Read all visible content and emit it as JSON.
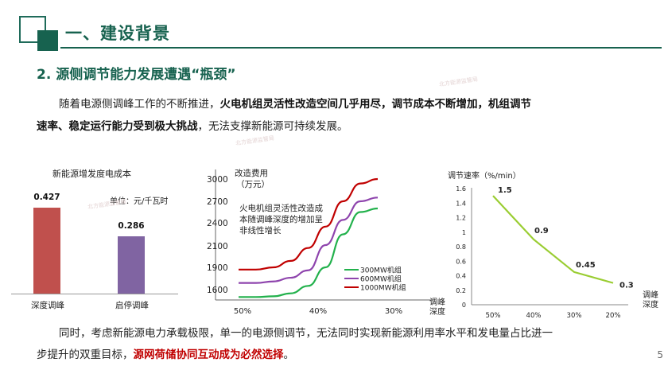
{
  "header": {
    "title": "一、建设背景"
  },
  "section": {
    "title": "2. 源侧调节能力发展遭遇“瓶颈”"
  },
  "paragraph1": {
    "part1": "随着电源侧调峰工作的不断推进，",
    "bold1": "火电机组灵活性改造空间几乎用尽，调节成本不断增加，机组调节",
    "bold2": "速率、稳定运行能力受到极大挑战",
    "part2": "，无法支撑新能源可持续发展。"
  },
  "paragraph2": {
    "line1": "同时，考虑新能源电力承载极限，单一的电源侧调节，无法同时实现新能源利用率水平和发电量占比进一",
    "line2_prefix": "步提升的双重目标，",
    "line2_red": "源网荷储协同互动成为必然选择",
    "line2_suffix": "。"
  },
  "colors": {
    "brand": "#17624f",
    "bar1": "#c0504d",
    "bar2": "#8064a2",
    "curve_top": "#c00000",
    "curve_mid": "#8e44ad",
    "curve_low": "#22b14c",
    "speed_line": "#9acd32"
  },
  "watermarks": [
    "北方能源监管局"
  ],
  "page_number": "5",
  "chart_data": [
    {
      "type": "bar",
      "title": "新能源增发度电成本",
      "unit": "单位：元/千瓦时",
      "categories": [
        "深度调峰",
        "启停调峰"
      ],
      "values": [
        0.427,
        0.286
      ],
      "value_labels": [
        "0.427",
        "0.286"
      ],
      "ylim": [
        0,
        0.5
      ]
    },
    {
      "type": "line",
      "ylabel": "改造费用",
      "ylabel_unit": "（万元）",
      "y_ticks": [
        "3000",
        "2700",
        "2400",
        "2100",
        "1900",
        "1600"
      ],
      "x_ticks": [
        "50%",
        "40%",
        "30%"
      ],
      "xlabel": [
        "调峰",
        "深度"
      ],
      "annotation": [
        "火电机组灵活性改造成",
        "本随调峰深度的增加呈",
        "非线性增长"
      ],
      "x": [
        0.5,
        0.475,
        0.45,
        0.425,
        0.4,
        0.375,
        0.35,
        0.325,
        0.3
      ],
      "series": [
        {
          "name": "300MW机组",
          "values": [
            1500,
            1500,
            1510,
            1550,
            1650,
            1900,
            2250,
            2550,
            2600
          ]
        },
        {
          "name": "600MW机组",
          "values": [
            1690,
            1690,
            1710,
            1760,
            1860,
            2110,
            2440,
            2700,
            2750
          ]
        },
        {
          "name": "1000MW机组",
          "values": [
            1870,
            1870,
            1900,
            1960,
            2080,
            2350,
            2700,
            2940,
            3000
          ]
        }
      ],
      "ylim": [
        1450,
        3050
      ]
    },
    {
      "type": "line",
      "ylabel": "调节速率（%/min）",
      "xlabel": [
        "调峰",
        "深度"
      ],
      "categories": [
        "50%",
        "40%",
        "30%",
        "20%"
      ],
      "y_ticks": [
        "1.6",
        "1.4",
        "1.2",
        "1",
        "0.8",
        "0.6",
        "0.4",
        "0.2",
        "0"
      ],
      "values": [
        1.5,
        0.9,
        0.45,
        0.3
      ],
      "value_labels": [
        "1.5",
        "0.9",
        "0.45",
        "0.3"
      ],
      "ylim": [
        0,
        1.6
      ]
    }
  ]
}
